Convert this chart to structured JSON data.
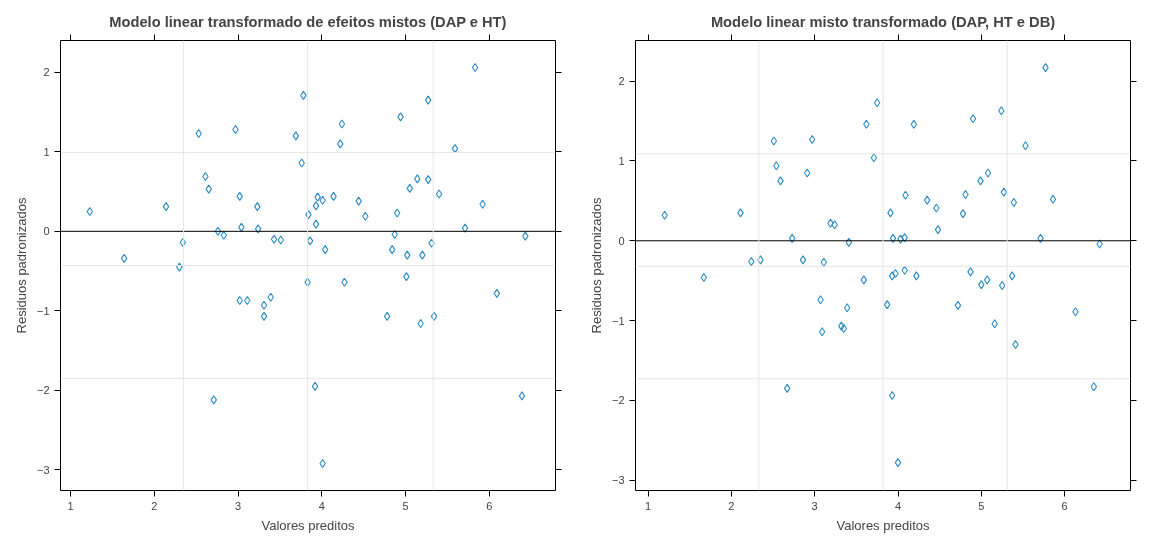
{
  "chart_data": [
    {
      "type": "scatter",
      "title": "Modelo linear transformado de efeitos mistos (DAP e HT)",
      "xlabel": "Valores preditos",
      "ylabel": "Residuos padronizados",
      "marker": "diamond",
      "grid": false,
      "xlim": [
        0.88,
        6.79
      ],
      "ylim": [
        -3.26,
        2.4
      ],
      "xticks": [
        1,
        2,
        3,
        4,
        5,
        6
      ],
      "yticks": [
        -3,
        -2,
        -1,
        0,
        1,
        2
      ],
      "ref_lines": [
        {
          "axis": "y",
          "value": 0,
          "color": "#000000"
        },
        {
          "axis": "x",
          "value": 2.35,
          "color": "#e6e6e6"
        },
        {
          "axis": "x",
          "value": 3.83,
          "color": "#e6e6e6"
        },
        {
          "axis": "x",
          "value": 5.33,
          "color": "#e6e6e6"
        },
        {
          "axis": "y",
          "value": 0.99,
          "color": "#e6e6e6"
        },
        {
          "axis": "y",
          "value": -0.43,
          "color": "#e6e6e6"
        },
        {
          "axis": "y",
          "value": -1.85,
          "color": "#e6e6e6"
        }
      ],
      "series": [
        {
          "color": "#2b8cc4",
          "x": [
            1.23,
            1.64,
            2.14,
            2.3,
            2.34,
            2.53,
            2.61,
            2.65,
            2.76,
            2.83,
            2.97,
            3.02,
            3.04,
            3.23,
            3.24,
            3.43,
            3.51,
            3.69,
            3.76,
            3.78,
            3.84,
            3.86,
            3.93,
            3.93,
            3.95,
            4.01,
            4.04,
            4.14,
            4.22,
            4.24,
            4.44,
            4.52,
            4.84,
            4.87,
            4.9,
            4.94,
            5.02,
            5.05,
            5.14,
            5.2,
            5.27,
            5.27,
            5.31,
            5.4,
            5.59,
            5.71,
            5.83,
            5.92,
            6.43,
            3.83,
            4.27,
            5.01,
            3.02,
            3.11,
            3.31,
            3.39,
            3.31,
            6.09,
            4.78,
            5.18,
            5.34,
            3.92,
            2.71,
            6.39,
            4.01
          ],
          "values": [
            0.25,
            -0.34,
            0.31,
            -0.45,
            -0.14,
            1.23,
            0.69,
            0.53,
            0.0,
            -0.05,
            1.28,
            0.44,
            0.05,
            0.31,
            0.03,
            -0.1,
            -0.11,
            1.2,
            0.86,
            1.71,
            0.21,
            -0.12,
            0.09,
            0.32,
            0.43,
            0.39,
            -0.23,
            0.44,
            1.1,
            1.35,
            0.38,
            0.19,
            -0.23,
            -0.04,
            0.23,
            1.44,
            -0.3,
            0.54,
            0.66,
            -0.3,
            1.65,
            0.65,
            -0.15,
            0.47,
            1.04,
            0.04,
            2.06,
            0.34,
            -0.06,
            -0.64,
            -0.64,
            -0.57,
            -0.87,
            -0.87,
            -0.93,
            -0.83,
            -1.07,
            -0.78,
            -1.07,
            -1.16,
            -1.07,
            -1.95,
            -2.12,
            -2.07,
            -2.92
          ]
        }
      ]
    },
    {
      "type": "scatter",
      "title": "Modelo linear misto transformado (DAP, HT e DB)",
      "xlabel": "Valores preditos",
      "ylabel": "Residuos padronizados",
      "marker": "diamond",
      "grid": false,
      "xlim": [
        0.85,
        6.79
      ],
      "ylim": [
        -3.13,
        2.51
      ],
      "xticks": [
        1,
        2,
        3,
        4,
        5,
        6
      ],
      "yticks": [
        -3,
        -2,
        -1,
        0,
        1,
        2
      ],
      "ref_lines": [
        {
          "axis": "y",
          "value": 0,
          "color": "#000000"
        },
        {
          "axis": "x",
          "value": 2.33,
          "color": "#e6e6e6"
        },
        {
          "axis": "x",
          "value": 3.82,
          "color": "#e6e6e6"
        },
        {
          "axis": "x",
          "value": 5.31,
          "color": "#e6e6e6"
        },
        {
          "axis": "y",
          "value": 1.09,
          "color": "#e6e6e6"
        },
        {
          "axis": "y",
          "value": -0.32,
          "color": "#e6e6e6"
        },
        {
          "axis": "y",
          "value": -1.73,
          "color": "#e6e6e6"
        }
      ],
      "series": [
        {
          "color": "#2b8cc4",
          "x": [
            1.2,
            2.11,
            2.24,
            2.35,
            2.51,
            2.54,
            2.59,
            2.73,
            2.86,
            2.91,
            2.97,
            3.11,
            3.19,
            3.24,
            3.41,
            3.62,
            3.71,
            3.75,
            3.91,
            3.94,
            4.03,
            4.08,
            4.09,
            4.19,
            4.35,
            4.46,
            4.48,
            4.78,
            4.81,
            4.9,
            4.99,
            5.08,
            5.24,
            5.27,
            5.39,
            5.53,
            5.71,
            5.77,
            5.86,
            6.42,
            1.67,
            3.59,
            3.93,
            3.97,
            4.08,
            4.22,
            4.87,
            5.0,
            5.07,
            5.25,
            5.37,
            3.07,
            3.39,
            3.87,
            4.72,
            6.13,
            3.09,
            3.32,
            3.35,
            5.16,
            5.41,
            2.67,
            3.93,
            6.35,
            4.0
          ],
          "values": [
            0.32,
            0.35,
            -0.26,
            -0.24,
            1.25,
            0.94,
            0.75,
            0.03,
            -0.24,
            0.85,
            1.27,
            -0.27,
            0.22,
            0.2,
            -0.02,
            1.46,
            1.04,
            1.73,
            0.35,
            0.03,
            0.02,
            0.04,
            0.57,
            1.46,
            0.51,
            0.41,
            0.14,
            0.34,
            0.58,
            1.53,
            0.75,
            0.85,
            1.63,
            0.61,
            0.48,
            1.19,
            0.03,
            2.17,
            0.52,
            -0.04,
            -0.46,
            -0.49,
            -0.44,
            -0.41,
            -0.37,
            -0.44,
            -0.39,
            -0.55,
            -0.49,
            -0.56,
            -0.44,
            -0.74,
            -0.84,
            -0.8,
            -0.81,
            -0.89,
            -1.14,
            -1.07,
            -1.1,
            -1.04,
            -1.3,
            -1.85,
            -1.94,
            -1.83,
            -2.78
          ]
        }
      ]
    }
  ]
}
